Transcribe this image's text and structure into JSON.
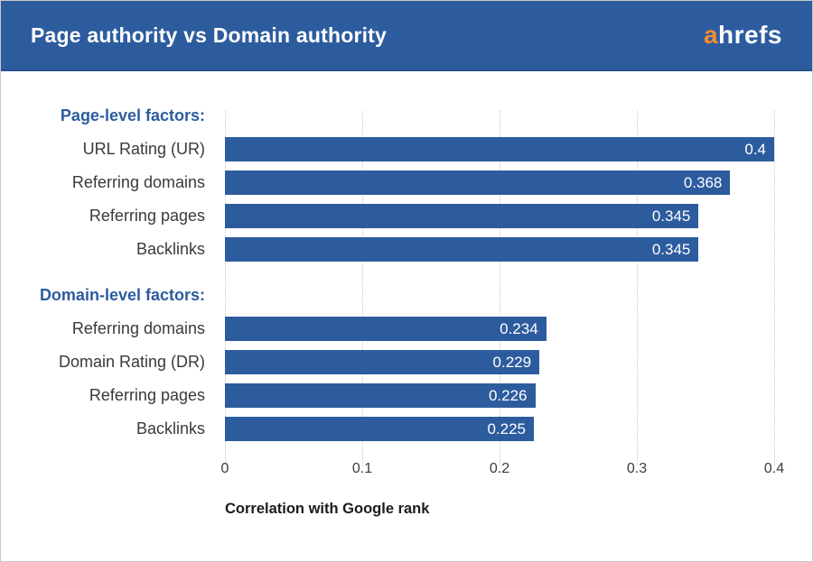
{
  "header": {
    "title": "Page authority vs Domain authority",
    "logo": {
      "accent_letter": "a",
      "rest": "hrefs"
    }
  },
  "colors": {
    "header_bg": "#2d5c9e",
    "header_border": "#26508c",
    "bar": "#2d5c9e",
    "logo_accent": "#f68b33",
    "section_heading": "#2d5c9e",
    "gridline": "#c9c9c9",
    "label_text": "#3a3a3a",
    "value_text": "#ffffff"
  },
  "chart_data": {
    "type": "bar",
    "orientation": "horizontal",
    "title": "Page authority vs Domain authority",
    "xlabel": "Correlation with Google rank",
    "ylabel": "",
    "xlim": [
      0,
      0.4
    ],
    "x_ticks": [
      0,
      0.1,
      0.2,
      0.3,
      0.4
    ],
    "x_tick_labels": [
      "0",
      "0.1",
      "0.2",
      "0.3",
      "0.4"
    ],
    "grid": true,
    "legend": false,
    "sections": [
      {
        "heading": "Page-level factors:",
        "categories": [
          "URL Rating (UR)",
          "Referring domains",
          "Referring pages",
          "Backlinks"
        ],
        "values": [
          0.4,
          0.368,
          0.345,
          0.345
        ]
      },
      {
        "heading": "Domain-level factors:",
        "categories": [
          "Referring domains",
          "Domain Rating (DR)",
          "Referring pages",
          "Backlinks"
        ],
        "values": [
          0.234,
          0.229,
          0.226,
          0.225
        ]
      }
    ]
  }
}
